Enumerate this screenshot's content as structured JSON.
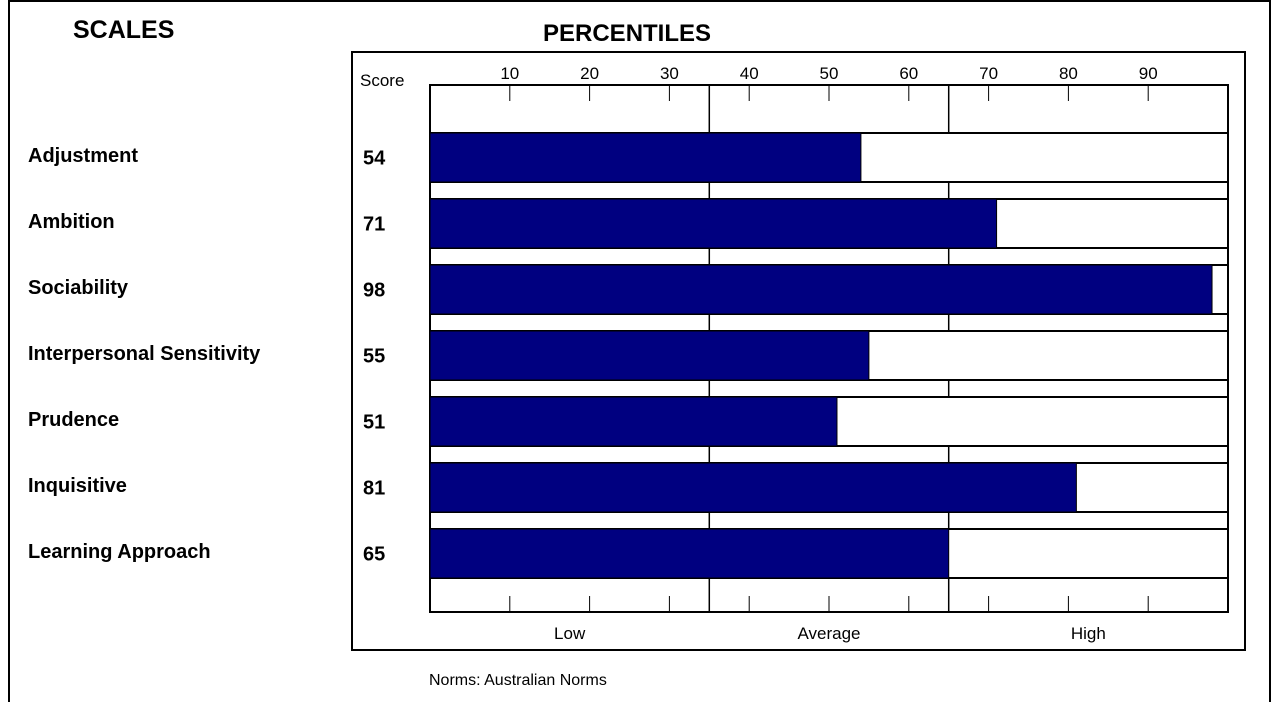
{
  "headings": {
    "scales": "SCALES",
    "percentiles": "PERCENTILES"
  },
  "score_header": "Score",
  "norms": "Norms:  Australian Norms",
  "colors": {
    "bar_fill": "#000080",
    "outline": "#000000",
    "background": "#ffffff"
  },
  "chart_data": {
    "type": "bar",
    "orientation": "horizontal",
    "title": "PERCENTILES",
    "categories": [
      "Adjustment",
      "Ambition",
      "Sociability",
      "Interpersonal Sensitivity",
      "Prudence",
      "Inquisitive",
      "Learning Approach"
    ],
    "values": [
      54,
      71,
      98,
      55,
      51,
      81,
      65
    ],
    "xlim": [
      0,
      100
    ],
    "ticks": [
      10,
      20,
      30,
      40,
      50,
      60,
      70,
      80,
      90
    ],
    "region_boundaries": [
      35,
      65
    ],
    "regions": [
      "Low",
      "Average",
      "High"
    ]
  }
}
